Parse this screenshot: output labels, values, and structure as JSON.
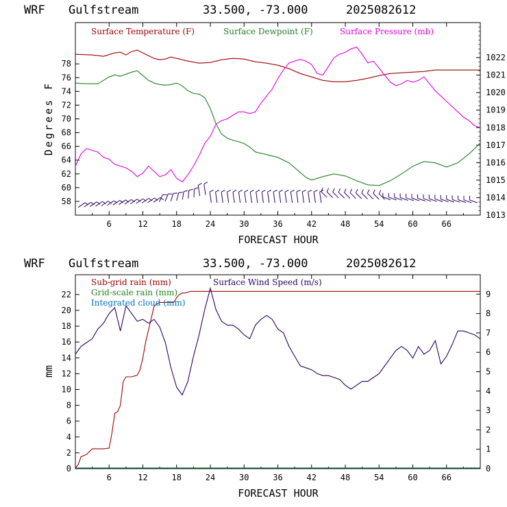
{
  "chart_data": [
    {
      "type": "line",
      "header": {
        "model": "WRF",
        "location": "Gulfstream",
        "coords": "33.500, -73.000",
        "run": "2025082612"
      },
      "xlabel": "FORECAST HOUR",
      "ylabel": "Degrees F",
      "xlim": [
        0,
        72
      ],
      "ylim": [
        56,
        84
      ],
      "y2lim": [
        1013,
        1024
      ],
      "x_ticks": [
        "6",
        "12",
        "18",
        "24",
        "30",
        "36",
        "42",
        "48",
        "54",
        "60",
        "66"
      ],
      "x_tick_values": [
        6,
        12,
        18,
        24,
        30,
        36,
        42,
        48,
        54,
        60,
        66
      ],
      "y_ticks": [
        58,
        60,
        62,
        64,
        66,
        68,
        70,
        72,
        74,
        76,
        78
      ],
      "y2_ticks": [
        1013,
        1014,
        1015,
        1016,
        1017,
        1018,
        1019,
        1020,
        1021,
        1022
      ],
      "series": [
        {
          "name": "Surface Temperature (F)",
          "color": "#a00000",
          "axis": "left",
          "x": [
            0,
            3,
            5,
            7,
            8,
            9,
            10,
            11,
            12,
            13,
            14,
            15,
            16,
            17,
            18,
            20,
            22,
            24,
            26,
            28,
            30,
            32,
            34,
            36,
            38,
            40,
            42,
            44,
            46,
            48,
            50,
            52,
            54,
            56,
            58,
            60,
            62,
            64,
            66,
            68,
            70,
            72
          ],
          "y": [
            79.4,
            79.3,
            79.1,
            79.6,
            79.7,
            79.3,
            79.8,
            80.0,
            79.6,
            79.2,
            78.8,
            78.6,
            78.7,
            79.0,
            78.8,
            78.4,
            78.1,
            78.2,
            78.6,
            78.8,
            78.7,
            78.3,
            78.1,
            77.8,
            77.3,
            76.6,
            76.1,
            75.6,
            75.4,
            75.4,
            75.6,
            75.9,
            76.3,
            76.6,
            76.7,
            76.8,
            76.9,
            77.1,
            77.1,
            77.1,
            77.1,
            77.1
          ]
        },
        {
          "name": "Surface Dewpoint (F)",
          "color": "#208020",
          "axis": "left",
          "x": [
            0,
            2,
            4,
            5,
            6,
            7,
            8,
            9,
            10,
            11,
            12,
            13,
            14,
            15,
            16,
            17,
            18,
            19,
            20,
            21,
            22,
            23,
            24,
            25,
            26,
            27,
            28,
            29,
            30,
            31,
            32,
            34,
            36,
            38,
            40,
            41,
            42,
            44,
            46,
            48,
            50,
            52,
            54,
            56,
            58,
            60,
            62,
            64,
            66,
            68,
            70,
            72
          ],
          "y": [
            75.2,
            75.1,
            75.1,
            75.6,
            76.1,
            76.4,
            76.2,
            76.5,
            76.8,
            77.0,
            76.3,
            75.6,
            75.2,
            75.0,
            74.9,
            75.0,
            75.2,
            74.8,
            74.1,
            73.7,
            73.6,
            73.1,
            71.5,
            69.3,
            67.8,
            67.2,
            66.9,
            66.7,
            66.4,
            65.9,
            65.2,
            64.8,
            64.4,
            63.6,
            62.2,
            61.5,
            61.1,
            61.6,
            62.0,
            61.7,
            61.0,
            60.4,
            60.3,
            61.0,
            62.0,
            63.1,
            63.8,
            63.6,
            63.0,
            63.6,
            64.9,
            66.5
          ]
        },
        {
          "name": "Surface Pressure (mb)",
          "color": "#e000e0",
          "axis": "right",
          "x": [
            0,
            1,
            2,
            3,
            4,
            5,
            6,
            7,
            8,
            9,
            10,
            11,
            12,
            13,
            14,
            15,
            16,
            17,
            18,
            19,
            20,
            21,
            22,
            23,
            24,
            25,
            26,
            27,
            28,
            29,
            30,
            31,
            32,
            33,
            34,
            35,
            36,
            37,
            38,
            39,
            40,
            41,
            42,
            43,
            44,
            45,
            46,
            47,
            48,
            49,
            50,
            51,
            52,
            53,
            54,
            55,
            56,
            57,
            58,
            59,
            60,
            61,
            62,
            63,
            64,
            65,
            66,
            67,
            68,
            69,
            70,
            71,
            72
          ],
          "y": [
            1015.8,
            1016.5,
            1016.8,
            1016.7,
            1016.6,
            1016.3,
            1016.2,
            1015.9,
            1015.8,
            1015.7,
            1015.5,
            1015.2,
            1015.4,
            1015.8,
            1015.5,
            1015.2,
            1015.3,
            1015.6,
            1015.1,
            1014.9,
            1015.3,
            1015.8,
            1016.4,
            1017.1,
            1017.5,
            1018.2,
            1018.4,
            1018.5,
            1018.7,
            1018.9,
            1018.9,
            1018.8,
            1018.9,
            1019.4,
            1019.8,
            1020.2,
            1020.8,
            1021.3,
            1021.7,
            1021.8,
            1021.9,
            1021.8,
            1021.6,
            1021.1,
            1021.0,
            1021.5,
            1022.0,
            1022.2,
            1022.3,
            1022.5,
            1022.6,
            1022.2,
            1021.7,
            1021.8,
            1021.4,
            1021.0,
            1020.6,
            1020.4,
            1020.5,
            1020.7,
            1020.6,
            1020.7,
            1020.9,
            1020.5,
            1020.1,
            1019.8,
            1019.5,
            1019.2,
            1018.9,
            1018.6,
            1018.4,
            1018.1,
            1018.0
          ]
        }
      ],
      "wind_barbs": {
        "color": "#2a0060",
        "count": 70
      }
    },
    {
      "type": "line",
      "header": {
        "model": "WRF",
        "location": "Gulfstream",
        "coords": "33.500, -73.000",
        "run": "2025082612"
      },
      "xlabel": "FORECAST HOUR",
      "ylabel": "mm",
      "xlim": [
        0,
        72
      ],
      "ylim": [
        0,
        24.5
      ],
      "y2lim": [
        0,
        10
      ],
      "x_ticks": [
        "6",
        "12",
        "18",
        "24",
        "30",
        "36",
        "42",
        "48",
        "54",
        "60",
        "66"
      ],
      "x_tick_values": [
        6,
        12,
        18,
        24,
        30,
        36,
        42,
        48,
        54,
        60,
        66
      ],
      "y_ticks": [
        0,
        2,
        4,
        6,
        8,
        10,
        12,
        14,
        16,
        18,
        20,
        22
      ],
      "y2_ticks": [
        0,
        1,
        2,
        3,
        4,
        5,
        6,
        7,
        8,
        9
      ],
      "series": [
        {
          "name": "Sub-grid rain (mm)",
          "color": "#a00000",
          "axis": "left",
          "x": [
            0,
            0.5,
            1,
            2,
            3,
            4,
            5,
            6,
            6.5,
            7,
            7.5,
            8,
            8.5,
            9,
            9.5,
            10,
            11,
            11.5,
            12,
            12.5,
            13,
            13.5,
            14,
            14.5,
            15,
            15.5,
            16,
            16.5,
            17,
            17.5,
            18,
            18.5,
            19,
            19.5,
            20,
            20.5,
            21,
            72
          ],
          "y": [
            0,
            0.5,
            1.5,
            1.8,
            2.5,
            2.5,
            2.5,
            2.6,
            4.5,
            7.0,
            7.2,
            8.0,
            11.0,
            11.6,
            11.6,
            11.6,
            11.8,
            12.5,
            14.0,
            16.0,
            17.5,
            19.0,
            20.5,
            20.8,
            21.0,
            21.0,
            21.0,
            21.0,
            21.0,
            21.0,
            21.6,
            22.0,
            22.2,
            22.2,
            22.3,
            22.4,
            22.4,
            22.4
          ]
        },
        {
          "name": "Grid-scale rain (mm)",
          "color": "#208020",
          "axis": "left",
          "x": [
            0,
            72
          ],
          "y": [
            0,
            0
          ]
        },
        {
          "name": "Integrated cloud (mm)",
          "color": "#0070c0",
          "axis": "left",
          "x": [
            0,
            69,
            70,
            72
          ],
          "y": [
            0,
            0,
            0.1,
            0.1
          ]
        },
        {
          "name": "Surface Wind Speed (m/s)",
          "color": "#2a0060",
          "axis": "right",
          "x": [
            0,
            1,
            2,
            3,
            4,
            5,
            6,
            7,
            8,
            9,
            10,
            11,
            12,
            13,
            14,
            15,
            16,
            17,
            18,
            19,
            20,
            21,
            22,
            23,
            24,
            25,
            26,
            27,
            28,
            29,
            30,
            31,
            32,
            33,
            34,
            35,
            36,
            37,
            38,
            39,
            40,
            41,
            42,
            43,
            44,
            45,
            46,
            47,
            48,
            49,
            50,
            51,
            52,
            53,
            54,
            55,
            56,
            57,
            58,
            59,
            60,
            61,
            62,
            63,
            64,
            65,
            66,
            67,
            68,
            69,
            70,
            71,
            72
          ],
          "y": [
            5.9,
            6.3,
            6.5,
            6.7,
            7.2,
            7.5,
            8.0,
            8.3,
            7.1,
            8.4,
            8.0,
            7.6,
            7.7,
            7.5,
            7.7,
            7.3,
            6.5,
            5.2,
            4.2,
            3.8,
            4.5,
            5.8,
            6.9,
            8.2,
            9.3,
            8.2,
            7.6,
            7.4,
            7.4,
            7.2,
            6.9,
            6.7,
            7.4,
            7.7,
            7.9,
            7.7,
            7.2,
            7.0,
            6.3,
            5.8,
            5.3,
            5.2,
            5.1,
            4.9,
            4.8,
            4.8,
            4.7,
            4.6,
            4.3,
            4.1,
            4.3,
            4.5,
            4.5,
            4.7,
            4.9,
            5.3,
            5.7,
            6.1,
            6.3,
            6.1,
            5.7,
            6.3,
            5.9,
            6.1,
            6.6,
            5.4,
            5.8,
            6.4,
            7.1,
            7.1,
            7.0,
            6.9,
            6.7
          ]
        }
      ]
    }
  ]
}
